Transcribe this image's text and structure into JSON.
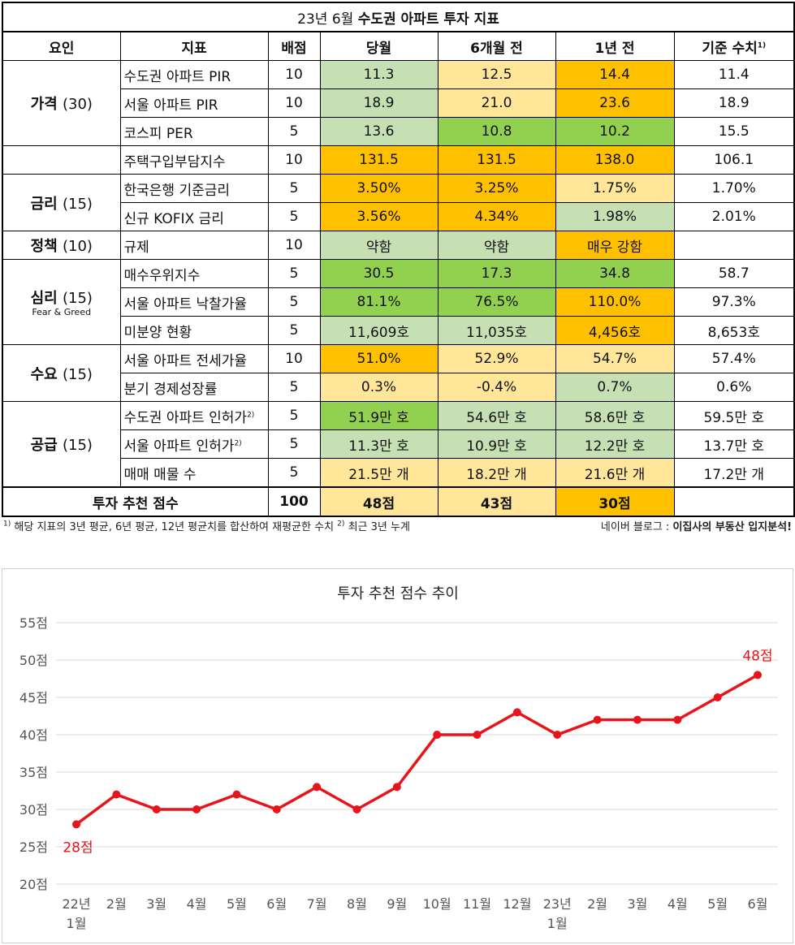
{
  "table": {
    "title_prefix": "23년 6월",
    "title_bold": "수도권 아파트 투자 지표",
    "headers": {
      "factor": "요인",
      "indicator": "지표",
      "weight": "배점",
      "current": "당월",
      "six_months": "6개월 전",
      "one_year": "1년 전",
      "baseline": "기준 수치",
      "baseline_sup": "1)"
    },
    "factors": {
      "price": {
        "name": "가격",
        "score": "(30)"
      },
      "rate": {
        "name": "금리",
        "score": "(15)"
      },
      "policy": {
        "name": "정책",
        "score": "(10)"
      },
      "sentiment": {
        "name": "심리",
        "score": "(15)",
        "sub": "Fear & Greed"
      },
      "demand": {
        "name": "수요",
        "score": "(15)"
      },
      "supply": {
        "name": "공급",
        "score": "(15)"
      }
    },
    "rows": [
      {
        "indicator": "수도권 아파트 PIR",
        "sup": "",
        "weight": "10",
        "current": "11.3",
        "six": "12.5",
        "year": "14.4",
        "base": "11.4",
        "colors": [
          "c-lg",
          "c-ly",
          "c-or"
        ]
      },
      {
        "indicator": "서울 아파트 PIR",
        "sup": "",
        "weight": "10",
        "current": "18.9",
        "six": "21.0",
        "year": "23.6",
        "base": "18.9",
        "colors": [
          "c-lg",
          "c-ly",
          "c-or"
        ]
      },
      {
        "indicator": "코스피 PER",
        "sup": "",
        "weight": "5",
        "current": "13.6",
        "six": "10.8",
        "year": "10.2",
        "base": "15.5",
        "colors": [
          "c-lg",
          "c-dg",
          "c-dg"
        ]
      },
      {
        "indicator": "주택구입부담지수",
        "sup": "",
        "weight": "10",
        "current": "131.5",
        "six": "131.5",
        "year": "138.0",
        "base": "106.1",
        "colors": [
          "c-or",
          "c-or",
          "c-or"
        ]
      },
      {
        "indicator": "한국은행 기준금리",
        "sup": "",
        "weight": "5",
        "current": "3.50%",
        "six": "3.25%",
        "year": "1.75%",
        "base": "1.70%",
        "colors": [
          "c-or",
          "c-or",
          "c-ly"
        ]
      },
      {
        "indicator": "신규 KOFIX 금리",
        "sup": "",
        "weight": "5",
        "current": "3.56%",
        "six": "4.34%",
        "year": "1.98%",
        "base": "2.01%",
        "colors": [
          "c-or",
          "c-or",
          "c-lg"
        ]
      },
      {
        "indicator": "규제",
        "sup": "",
        "weight": "10",
        "current": "약함",
        "six": "약함",
        "year": "매우 강함",
        "base": "",
        "colors": [
          "c-lg",
          "c-lg",
          "c-or"
        ]
      },
      {
        "indicator": "매수우위지수",
        "sup": "",
        "weight": "5",
        "current": "30.5",
        "six": "17.3",
        "year": "34.8",
        "base": "58.7",
        "colors": [
          "c-dg",
          "c-dg",
          "c-dg"
        ]
      },
      {
        "indicator": "서울 아파트 낙찰가율",
        "sup": "",
        "weight": "5",
        "current": "81.1%",
        "six": "76.5%",
        "year": "110.0%",
        "base": "97.3%",
        "colors": [
          "c-dg",
          "c-dg",
          "c-or"
        ]
      },
      {
        "indicator": "미분양 현황",
        "sup": "",
        "weight": "5",
        "current": "11,609호",
        "six": "11,035호",
        "year": "4,456호",
        "base": "8,653호",
        "colors": [
          "c-lg",
          "c-lg",
          "c-or"
        ]
      },
      {
        "indicator": "서울 아파트 전세가율",
        "sup": "",
        "weight": "10",
        "current": "51.0%",
        "six": "52.9%",
        "year": "54.7%",
        "base": "57.4%",
        "colors": [
          "c-or",
          "c-ly",
          "c-ly"
        ]
      },
      {
        "indicator": "분기 경제성장률",
        "sup": "",
        "weight": "5",
        "current": "0.3%",
        "six": "-0.4%",
        "year": "0.7%",
        "base": "0.6%",
        "colors": [
          "c-ly",
          "c-ly",
          "c-lg"
        ]
      },
      {
        "indicator": "수도권 아파트 인허가",
        "sup": "2)",
        "weight": "5",
        "current": "51.9만 호",
        "six": "54.6만 호",
        "year": "58.6만 호",
        "base": "59.5만 호",
        "colors": [
          "c-dg",
          "c-lg",
          "c-lg"
        ]
      },
      {
        "indicator": "서울 아파트 인허가",
        "sup": "2)",
        "weight": "5",
        "current": "11.3만 호",
        "six": "10.9만 호",
        "year": "12.2만 호",
        "base": "13.7만 호",
        "colors": [
          "c-lg",
          "c-lg",
          "c-lg"
        ]
      },
      {
        "indicator": "매매 매물 수",
        "sup": "",
        "weight": "5",
        "current": "21.5만 개",
        "six": "18.2만 개",
        "year": "21.6만 개",
        "base": "17.2만 개",
        "colors": [
          "c-ly",
          "c-ly",
          "c-ly"
        ]
      }
    ],
    "total": {
      "label": "투자 추천 점수",
      "weight": "100",
      "current": "48점",
      "six": "43점",
      "year": "30점"
    }
  },
  "footnote": {
    "note1_sup": "1)",
    "note1": "해당 지표의 3년 평균, 6년 평균, 12년 평균치를 합산하여 재평균한 수치",
    "note2_sup": "2)",
    "note2": "최근 3년 누계",
    "source_prefix": "네이버 블로그 : ",
    "source_bold": "이집사의 부동산 입지분석!"
  },
  "chart_data": {
    "type": "line",
    "title": "투자 추천 점수 추이",
    "categories": [
      [
        "22년",
        "1월"
      ],
      [
        "2월"
      ],
      [
        "3월"
      ],
      [
        "4월"
      ],
      [
        "5월"
      ],
      [
        "6월"
      ],
      [
        "7월"
      ],
      [
        "8월"
      ],
      [
        "9월"
      ],
      [
        "10월"
      ],
      [
        "11월"
      ],
      [
        "12월"
      ],
      [
        "23년",
        "1월"
      ],
      [
        "2월"
      ],
      [
        "3월"
      ],
      [
        "4월"
      ],
      [
        "5월"
      ],
      [
        "6월"
      ]
    ],
    "values": [
      28,
      32,
      30,
      30,
      32,
      30,
      33,
      30,
      33,
      40,
      40,
      43,
      40,
      42,
      42,
      42,
      45,
      48
    ],
    "ylim": [
      20,
      55
    ],
    "yticks": [
      20,
      25,
      30,
      35,
      40,
      45,
      50,
      55
    ],
    "ytick_labels": [
      "20점",
      "25점",
      "30점",
      "35점",
      "40점",
      "45점",
      "50점",
      "55점"
    ],
    "annotations": [
      {
        "index": 0,
        "text": "28점"
      },
      {
        "index": 17,
        "text": "48점"
      }
    ],
    "color": "#e8141b",
    "grid": true
  }
}
